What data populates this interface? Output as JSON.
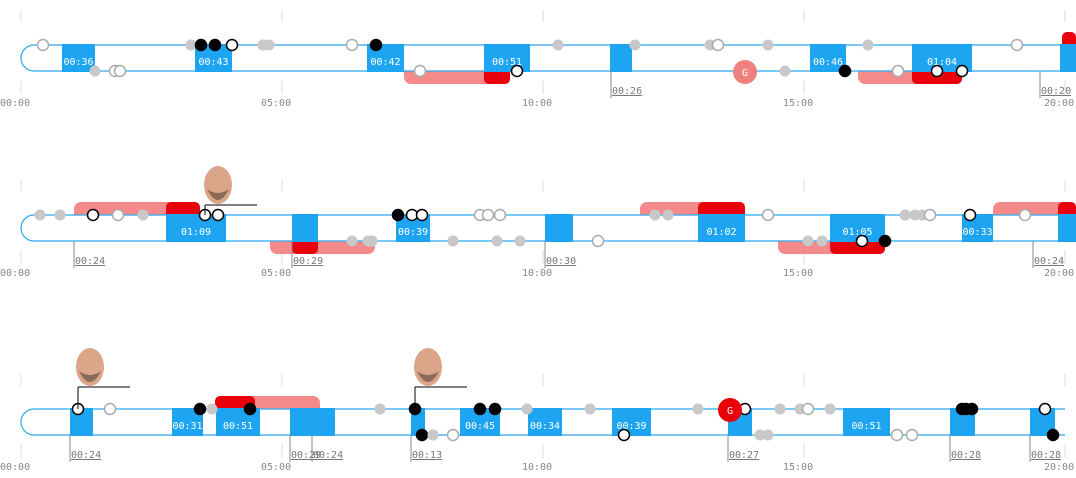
{
  "rows": [
    {
      "ticks": [
        "00:00",
        "05:00",
        "10:00",
        "15:00",
        "20:00"
      ],
      "shifts": [
        "00:36",
        "00:43",
        "00:42",
        "00:51",
        "00:46",
        "01:04"
      ],
      "markers": [
        "00:26",
        "00:20"
      ],
      "goals": [
        "G"
      ]
    },
    {
      "ticks": [
        "00:00",
        "05:00",
        "10:00",
        "15:00",
        "20:00"
      ],
      "shifts": [
        "01:09",
        "00:39",
        "01:02",
        "01:05",
        "00:33"
      ],
      "markers": [
        "00:24",
        "00:29",
        "00:30",
        "00:24"
      ],
      "goals": []
    },
    {
      "ticks": [
        "00:00",
        "05:00",
        "10:00",
        "15:00",
        "20:00"
      ],
      "shifts": [
        "00:31",
        "00:51",
        "00:45",
        "00:34",
        "00:39",
        "00:51"
      ],
      "markers": [
        "00:24",
        "00:29",
        "00:24",
        "00:13",
        "00:27",
        "00:28",
        "00:28"
      ],
      "goals": [
        "G"
      ]
    }
  ]
}
